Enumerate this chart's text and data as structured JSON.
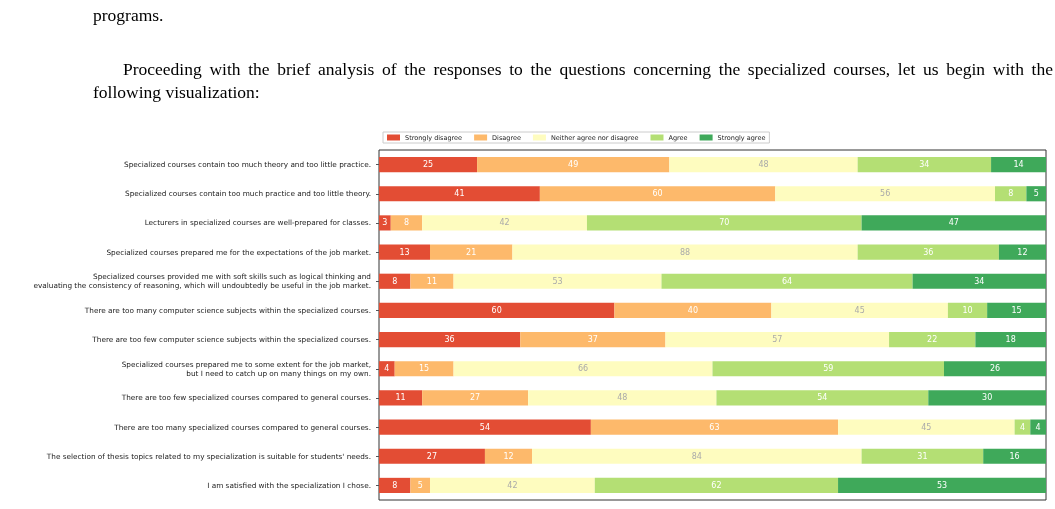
{
  "chart_data": {
    "type": "bar",
    "orientation": "horizontal",
    "stacked": true,
    "data_labels": true,
    "legend": "top left",
    "grid": false,
    "tick_labels": "y",
    "xlim": [
      0,
      170
    ],
    "annotations": [
      "programs.",
      "Proceeding with the brief analysis of the responses to the questions concerning the specialized courses, let us begin with the following visualization:"
    ],
    "categories": [
      "Specialized courses contain too much theory and too little practice.",
      "Specialized courses contain too much practice and too little theory.",
      "Lecturers in specialized courses are well-prepared for classes.",
      "Specialized courses prepared me for the expectations of the job market.",
      "Specialized courses provided me with soft skills such as logical thinking and\nevaluating the consistency of reasoning, which will undoubtedly be useful in the job market.",
      "There are too many computer science subjects within the specialized courses.",
      "There are too few computer science subjects within the specialized courses.",
      "Specialized courses prepared me to some extent for the job market,\nbut I need to catch up on many things on my own.",
      "There are too few specialized courses compared to general courses.",
      "There are too many specialized courses compared to general courses.",
      "The selection of thesis topics related to my specialization is suitable for students' needs.",
      "I am satisfied with the specialization I chose."
    ],
    "series": [
      {
        "name": "Strongly disagree",
        "color": "#e34d34",
        "values": [
          25,
          41,
          3,
          13,
          8,
          60,
          36,
          4,
          11,
          54,
          27,
          8
        ]
      },
      {
        "name": "Disagree",
        "color": "#fdb96b",
        "values": [
          49,
          60,
          8,
          21,
          11,
          40,
          37,
          15,
          27,
          63,
          12,
          5
        ]
      },
      {
        "name": "Neither agree nor disagree",
        "color": "#fefcbf",
        "values": [
          48,
          56,
          42,
          88,
          53,
          45,
          57,
          66,
          48,
          45,
          84,
          42
        ]
      },
      {
        "name": "Agree",
        "color": "#b4df74",
        "values": [
          34,
          8,
          70,
          36,
          64,
          10,
          22,
          59,
          54,
          4,
          31,
          62
        ]
      },
      {
        "name": "Strongly agree",
        "color": "#3fa95a",
        "values": [
          14,
          5,
          47,
          12,
          34,
          15,
          18,
          26,
          30,
          4,
          16,
          53
        ]
      }
    ]
  }
}
